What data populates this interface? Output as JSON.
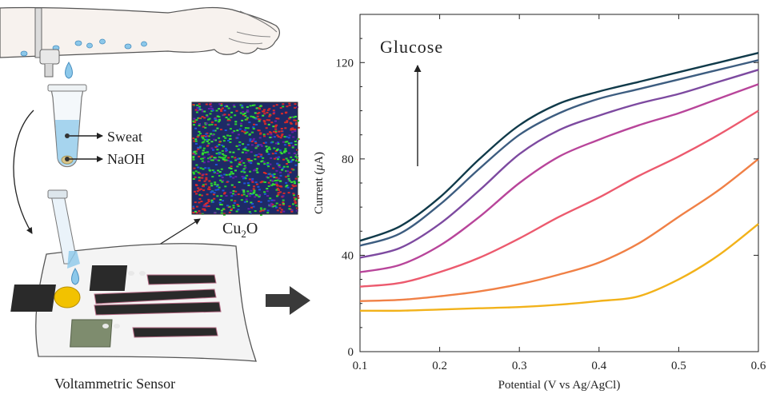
{
  "figure": {
    "labels": {
      "sweat": "Sweat",
      "naoh": "NaOH",
      "material": "Cu",
      "material_sub": "2",
      "material_tail": "O",
      "sensor": "Voltammetric Sensor"
    },
    "colors": {
      "sweat_drop": "#8cc8ea",
      "sensor_sheet": "#f4f4f4",
      "electrode": "#2a2a2a",
      "working_pad": "#f2c200",
      "arrow": "#333333"
    }
  },
  "chart_data": {
    "type": "line",
    "annotation": "Glucose",
    "xlabel_parts": [
      "Potential (V vs Ag/AgCl)"
    ],
    "ylabel_parts": [
      "Current (",
      "μ",
      "A)"
    ],
    "xlim": [
      0.1,
      0.6
    ],
    "ylim": [
      0,
      140
    ],
    "xticks": [
      0.1,
      0.2,
      0.3,
      0.4,
      0.5,
      0.6
    ],
    "yticks": [
      0,
      40,
      80,
      120
    ],
    "grid": false,
    "x": [
      0.1,
      0.15,
      0.2,
      0.25,
      0.3,
      0.35,
      0.4,
      0.45,
      0.5,
      0.55,
      0.6
    ],
    "series": [
      {
        "color": "#f2b21a",
        "values": [
          17,
          17,
          17.5,
          18,
          18.5,
          19.5,
          21,
          23,
          30,
          40,
          53
        ]
      },
      {
        "color": "#f08046",
        "values": [
          21,
          21.5,
          23,
          25,
          28,
          32,
          37,
          45,
          56,
          67,
          80
        ]
      },
      {
        "color": "#ec5a6e",
        "values": [
          27,
          28.5,
          33,
          39,
          47,
          56,
          64,
          73,
          81,
          90,
          100
        ]
      },
      {
        "color": "#b8459a",
        "values": [
          33,
          36,
          44,
          56,
          70,
          81,
          88,
          94,
          99,
          105,
          111
        ]
      },
      {
        "color": "#7d4aa0",
        "values": [
          39,
          43,
          53,
          67,
          82,
          92,
          98,
          103,
          107,
          112,
          117
        ]
      },
      {
        "color": "#3d5d80",
        "values": [
          44,
          49,
          61,
          76,
          90,
          99,
          105,
          109,
          113,
          117,
          121
        ]
      },
      {
        "color": "#103a4a",
        "values": [
          46,
          52,
          64,
          80,
          94,
          103,
          108,
          112,
          116,
          120,
          124
        ]
      }
    ]
  }
}
